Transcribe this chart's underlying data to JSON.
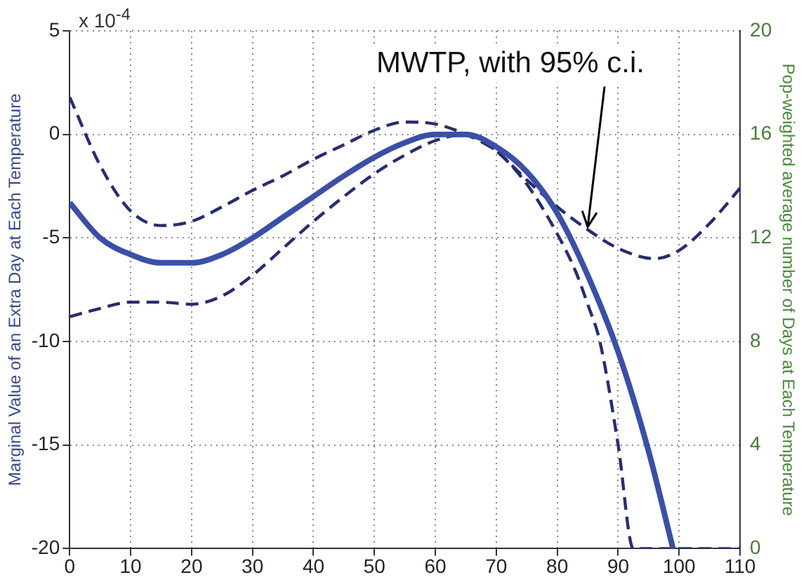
{
  "chart_data": {
    "type": "line",
    "ylabel": "Marginal Value of an Extra Day at Each Temperature",
    "y2label": "Pop-weighted average number of Days at Each Temperature",
    "annotations": [
      "x 10$^{-4}$",
      {
        "text": "MWTP, with 95% c.i.",
        "x": 85,
        "y": -4.6
      }
    ],
    "xlim": [
      0,
      110
    ],
    "xticks": [
      0,
      10,
      20,
      30,
      40,
      50,
      60,
      70,
      80,
      90,
      100,
      110
    ],
    "ylim": [
      -20,
      5
    ],
    "yticks": [
      -20,
      -15,
      -10,
      -5,
      0,
      5
    ],
    "y2lim": [
      0,
      20
    ],
    "y2ticks": [
      0,
      4,
      8,
      12,
      16,
      20
    ],
    "grid": true,
    "legend": false,
    "marker": "none",
    "series": [
      {
        "color": "#3b4fa6",
        "line_style": "solid",
        "x": [
          0,
          5,
          10,
          15,
          20,
          25,
          30,
          35,
          40,
          45,
          50,
          55,
          60,
          65,
          70,
          75,
          80,
          85,
          90,
          95,
          99
        ],
        "values": [
          -3.3,
          -5,
          -5.8,
          -6.2,
          -6.2,
          -5.8,
          -5,
          -4,
          -3,
          -2,
          -1.1,
          -0.4,
          0,
          0,
          -0.6,
          -1.8,
          -3.8,
          -6.8,
          -10.5,
          -15.3,
          -20
        ]
      },
      {
        "color": "#262d6e",
        "line_style": "dashed",
        "x": [
          0,
          5,
          10,
          15,
          20,
          25,
          30,
          35,
          40,
          45,
          50,
          55,
          60,
          65,
          70,
          75,
          80,
          85,
          90,
          96,
          100,
          105,
          110
        ],
        "values": [
          1.8,
          -1.5,
          -3.7,
          -4.4,
          -4.2,
          -3.5,
          -2.7,
          -2,
          -1.2,
          -0.5,
          0.2,
          0.6,
          0.5,
          0,
          -0.8,
          -2.2,
          -3.5,
          -4.6,
          -5.5,
          -6,
          -5.6,
          -4.3,
          -2.6
        ]
      },
      {
        "color": "#262d6e",
        "line_style": "dashed",
        "x": [
          0,
          5,
          10,
          15,
          20,
          25,
          30,
          35,
          40,
          45,
          50,
          55,
          60,
          65,
          70,
          75,
          80,
          83,
          85,
          87,
          90,
          92.5,
          110
        ],
        "values": [
          -8.8,
          -8.4,
          -8.1,
          -8.1,
          -8.2,
          -7.8,
          -6.8,
          -5.5,
          -4.2,
          -3,
          -1.9,
          -1,
          -0.3,
          0,
          -0.8,
          -2.4,
          -4.8,
          -6.6,
          -8.2,
          -10,
          -15,
          -20,
          -20
        ]
      }
    ]
  }
}
